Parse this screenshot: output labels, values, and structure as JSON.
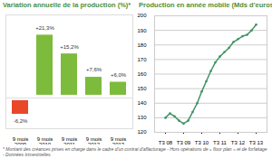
{
  "chart_data": [
    {
      "type": "bar",
      "title": "Variation annuelle de la production (%)*",
      "categories": [
        "9 mois\n2009",
        "9 mois\n2010",
        "9 mois\n2011",
        "9 mois\n2012",
        "9 mois\n2013"
      ],
      "values": [
        -6.2,
        21.3,
        15.2,
        7.6,
        6.0
      ],
      "value_labels": [
        "-6,2%",
        "+21,3%",
        "+15,2%",
        "+7,6%",
        "+6,0%"
      ],
      "colors": [
        "#e8472a",
        "#7dbb3c",
        "#7dbb3c",
        "#7dbb3c",
        "#7dbb3c"
      ],
      "ylim": [
        -10,
        27
      ],
      "data_labels": true,
      "tick_labels": "x",
      "grid": false
    },
    {
      "type": "line",
      "title": "Production en année mobile (Mds d'euros)*",
      "categories": [
        "T3 08",
        null,
        null,
        null,
        "T3 09",
        null,
        null,
        null,
        "T3 10",
        null,
        null,
        null,
        "T3 11",
        null,
        null,
        null,
        "T3 12",
        null,
        null,
        null,
        "T3 13"
      ],
      "values": [
        130,
        133,
        131,
        128,
        126,
        128,
        134,
        140,
        148,
        155,
        162,
        168,
        172,
        175,
        178,
        182,
        184,
        186,
        187,
        190,
        194
      ],
      "color": "#3f9466",
      "marker": "circle",
      "ylim": [
        120,
        200
      ],
      "yticks": [
        120,
        130,
        140,
        150,
        160,
        170,
        180,
        190,
        200
      ],
      "grid": true
    }
  ],
  "footnote": "* Montant des créances prises en charge dans le cadre d'un contrat d'affacturage - Hors opérations de « floor plan » et de forfaitage - Données trimestrielles."
}
